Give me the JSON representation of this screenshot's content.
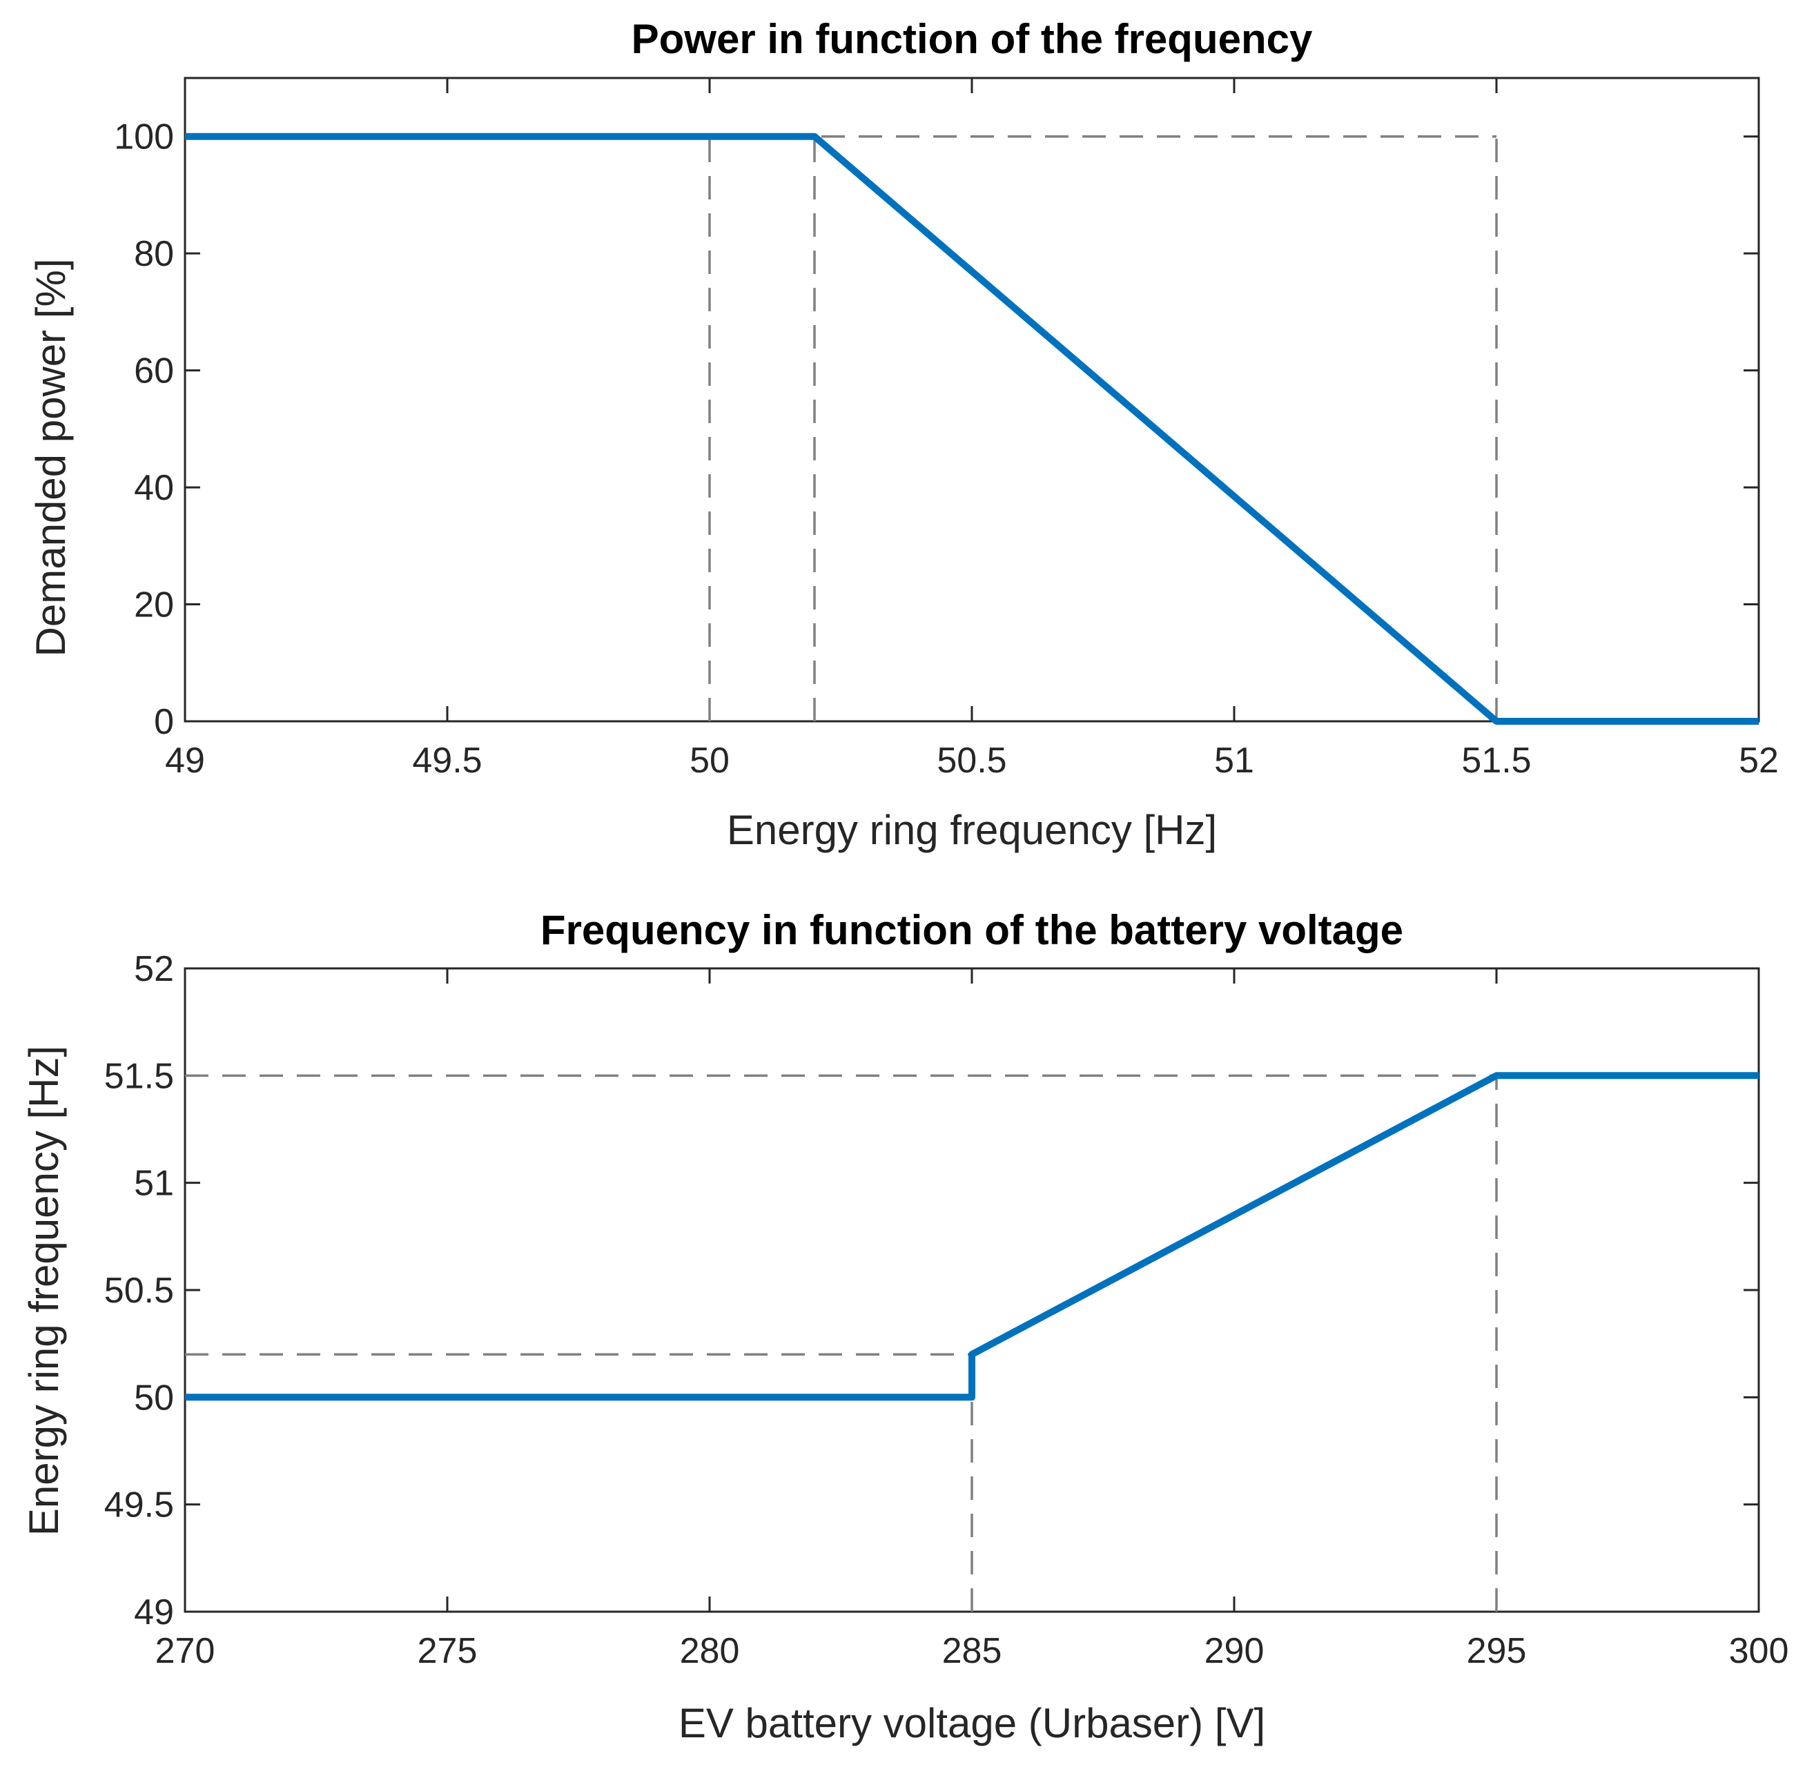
{
  "colors": {
    "series": "#0072BD",
    "reference": "#808080",
    "axes": "#262626",
    "background": "#FFFFFF"
  },
  "chart_data": [
    {
      "type": "line",
      "title": "Power in function of the frequency",
      "xlabel": "Energy ring frequency [Hz]",
      "ylabel": "Demanded power [%]",
      "xlim": [
        49,
        52
      ],
      "ylim": [
        0,
        110
      ],
      "grid": false,
      "xticks": [
        49,
        49.5,
        50,
        50.5,
        51,
        51.5,
        52
      ],
      "xtick_labels": [
        "49",
        "49.5",
        "50",
        "50.5",
        "51",
        "51.5",
        "52"
      ],
      "yticks": [
        0,
        20,
        40,
        60,
        80,
        100
      ],
      "ytick_labels": [
        "0",
        "20",
        "40",
        "60",
        "80",
        "100"
      ],
      "series": [
        {
          "name": "Demanded power",
          "x": [
            49,
            50.2,
            51.5,
            52
          ],
          "y": [
            100,
            100,
            0,
            0
          ]
        }
      ],
      "reference_lines": [
        {
          "name": "ref-v-50",
          "x": [
            50,
            50
          ],
          "y": [
            0,
            100
          ]
        },
        {
          "name": "ref-v-50-2",
          "x": [
            50.2,
            50.2
          ],
          "y": [
            0,
            100
          ]
        },
        {
          "name": "ref-v-51-5",
          "x": [
            51.5,
            51.5
          ],
          "y": [
            0,
            100
          ]
        },
        {
          "name": "ref-h-100",
          "x": [
            50,
            51.5
          ],
          "y": [
            100,
            100
          ]
        }
      ]
    },
    {
      "type": "line",
      "title": "Frequency in function of the battery voltage",
      "xlabel": "EV battery voltage (Urbaser) [V]",
      "ylabel": "Energy ring frequency [Hz]",
      "xlim": [
        270,
        300
      ],
      "ylim": [
        49,
        52
      ],
      "grid": false,
      "xticks": [
        270,
        275,
        280,
        285,
        290,
        295,
        300
      ],
      "xtick_labels": [
        "270",
        "275",
        "280",
        "285",
        "290",
        "295",
        "300"
      ],
      "yticks": [
        49,
        49.5,
        50,
        50.5,
        51,
        51.5,
        52
      ],
      "ytick_labels": [
        "49",
        "49.5",
        "50",
        "50.5",
        "51",
        "51.5",
        "52"
      ],
      "series": [
        {
          "name": "Energy ring frequency",
          "x": [
            270,
            285,
            285,
            295,
            300
          ],
          "y": [
            50,
            50,
            50.2,
            51.5,
            51.5
          ]
        }
      ],
      "reference_lines": [
        {
          "name": "ref-h-51-5",
          "x": [
            270,
            295
          ],
          "y": [
            51.5,
            51.5
          ]
        },
        {
          "name": "ref-h-50-2",
          "x": [
            270,
            285
          ],
          "y": [
            50.2,
            50.2
          ]
        },
        {
          "name": "ref-v-285",
          "x": [
            285,
            285
          ],
          "y": [
            49,
            50
          ]
        },
        {
          "name": "ref-v-295",
          "x": [
            295,
            295
          ],
          "y": [
            49,
            51.5
          ]
        }
      ]
    }
  ]
}
